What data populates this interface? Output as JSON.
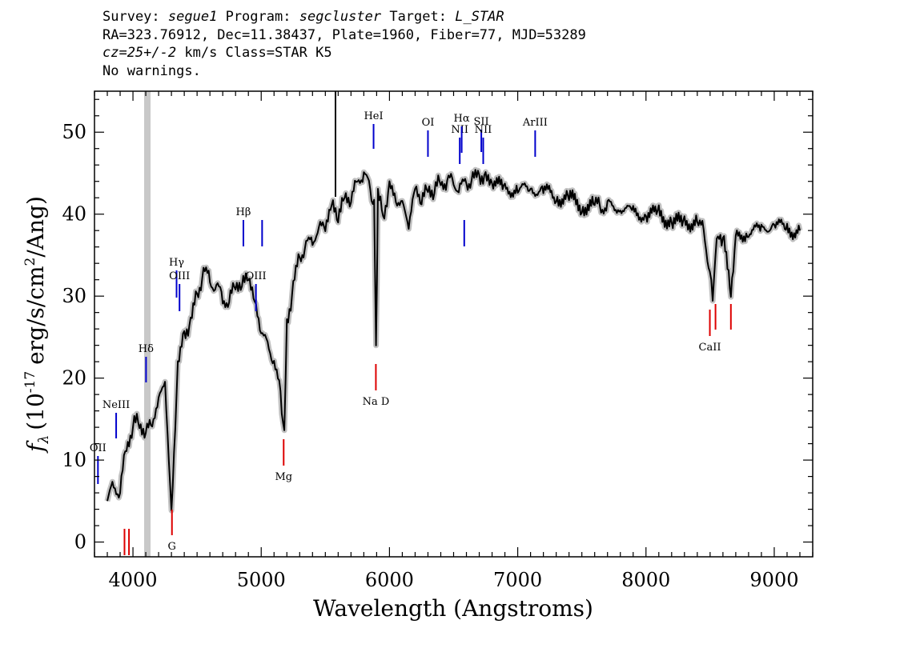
{
  "header": {
    "l1_survey_label": "Survey:",
    "l1_survey": "segue1",
    "l1_program_label": "Program:",
    "l1_program": "segcluster",
    "l1_target_label": "Target:",
    "l1_target": "L_STAR",
    "l2": "RA=323.76912, Dec=11.38437, Plate=1960, Fiber=77, MJD=53289",
    "l3_cz": "cz=25+/-2",
    "l3_rest": "km/s Class=STAR K5",
    "l4": "No warnings."
  },
  "chart_data": {
    "type": "line",
    "xlabel": "Wavelength (Angstroms)",
    "ylabel_prefix": "f",
    "ylabel_sub": "λ",
    "ylabel_unit": "(10",
    "ylabel_exp": "-17",
    "ylabel_rest": "erg/s/cm",
    "ylabel_exp2": "2",
    "ylabel_end": "/Ang)",
    "xlim": [
      3700,
      9300
    ],
    "ylim": [
      -1.8,
      55
    ],
    "xticks": [
      4000,
      5000,
      6000,
      7000,
      8000,
      9000
    ],
    "yticks": [
      0,
      10,
      20,
      30,
      40,
      50
    ],
    "grid": false,
    "series": [
      {
        "color": "#000000",
        "x": [
          3800,
          3850,
          3900,
          3950,
          4000,
          4050,
          4100,
          4150,
          4200,
          4250,
          4300,
          4350,
          4400,
          4450,
          4500,
          4550,
          4600,
          4650,
          4700,
          4750,
          4800,
          4850,
          4900,
          4950,
          5000,
          5050,
          5100,
          5150,
          5180,
          5200,
          5250,
          5300,
          5350,
          5400,
          5450,
          5500,
          5550,
          5600,
          5650,
          5700,
          5750,
          5800,
          5850,
          5880,
          5895,
          5910,
          5950,
          6000,
          6050,
          6100,
          6150,
          6200,
          6250,
          6300,
          6350,
          6400,
          6450,
          6500,
          6550,
          6600,
          6650,
          6700,
          6750,
          6800,
          6900,
          7000,
          7100,
          7200,
          7300,
          7400,
          7500,
          7600,
          7650,
          7700,
          7800,
          7900,
          8000,
          8100,
          8200,
          8300,
          8400,
          8450,
          8498,
          8520,
          8542,
          8570,
          8600,
          8662,
          8700,
          8800,
          8900,
          9000,
          9100,
          9200
        ],
        "y": [
          5,
          7,
          6,
          12,
          14,
          15,
          13,
          15,
          17,
          20,
          3,
          22,
          25,
          27,
          30,
          33,
          32,
          31,
          30,
          29,
          32,
          31,
          33,
          29,
          26,
          24,
          22,
          18,
          13,
          27,
          31,
          35,
          36,
          37,
          38,
          39,
          41,
          40,
          42,
          42,
          44,
          45,
          43,
          41,
          24,
          42,
          40,
          43,
          42,
          41,
          39,
          43,
          42,
          43,
          43,
          44,
          44,
          44,
          43,
          44,
          44,
          45,
          44,
          44,
          43,
          43,
          43,
          43,
          42,
          42,
          41,
          41,
          41,
          41,
          41,
          40,
          40,
          40,
          39,
          39,
          39,
          38,
          33,
          30,
          35,
          38,
          37,
          31,
          37,
          38,
          38,
          39,
          38,
          38
        ]
      }
    ],
    "lines_blue": [
      {
        "label": "OII",
        "x": 3727
      },
      {
        "label": "NeIII",
        "x": 3869
      },
      {
        "label": "Hδ",
        "x": 4102
      },
      {
        "label": "Hγ",
        "x": 4340
      },
      {
        "label": "OIII",
        "x": 4363
      },
      {
        "label": "Hβ",
        "x": 4861
      },
      {
        "label": "OIII",
        "x": 4959
      },
      {
        "label": "",
        "x": 5007
      },
      {
        "label": "HeI",
        "x": 5876
      },
      {
        "label": "OI",
        "x": 6300
      },
      {
        "label": "NII",
        "x": 6548
      },
      {
        "label": "Hα",
        "x": 6563
      },
      {
        "label": "",
        "x": 6583
      },
      {
        "label": "SII",
        "x": 6716
      },
      {
        "label": "NII",
        "x": 6731
      },
      {
        "label": "ArIII",
        "x": 7136
      }
    ],
    "lines_red": [
      {
        "label": "",
        "x": 3934
      },
      {
        "label": "",
        "x": 3969
      },
      {
        "label": "G",
        "x": 4304
      },
      {
        "label": "Mg",
        "x": 5175
      },
      {
        "label": "Na D",
        "x": 5894
      },
      {
        "label": "CaII",
        "x": 8498
      },
      {
        "label": "",
        "x": 8542
      },
      {
        "label": "",
        "x": 8662
      }
    ],
    "colors": {
      "spectrum": "#000000",
      "error": "#c0c0c0",
      "emission": "#0000cc",
      "absorption": "#dd0000",
      "mask": "#c8c8c8"
    }
  }
}
